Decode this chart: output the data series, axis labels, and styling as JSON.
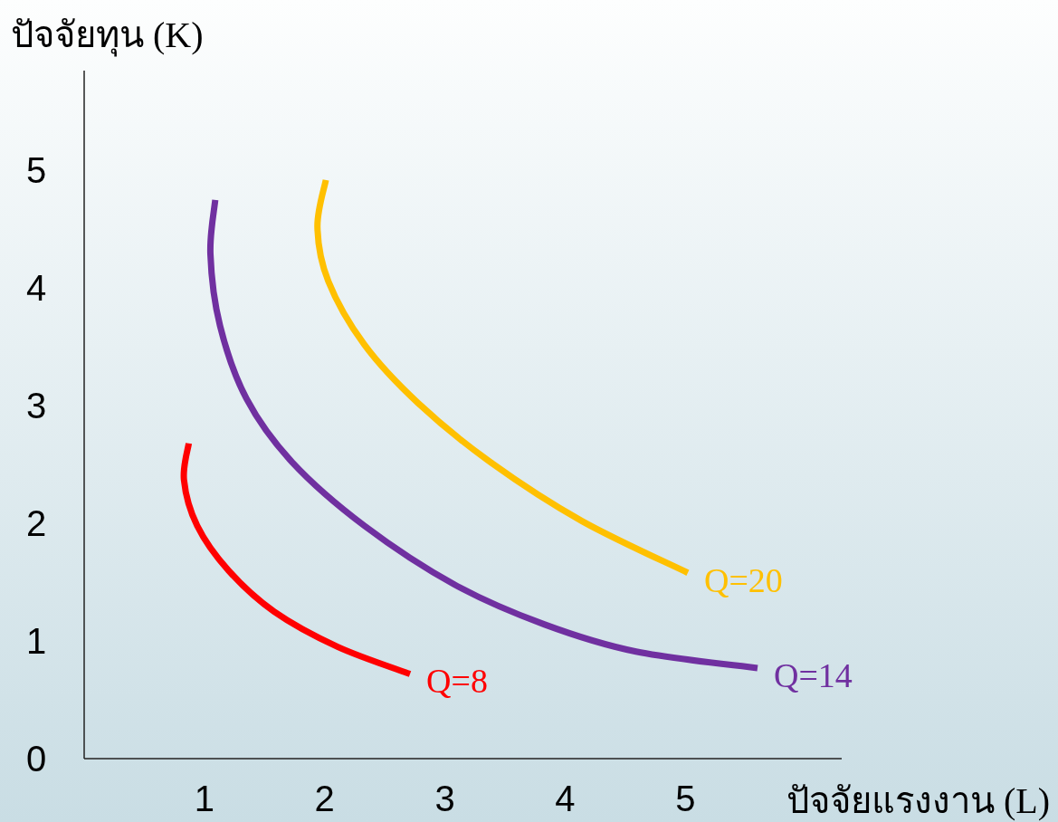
{
  "chart_data": {
    "type": "line",
    "xlabel": "ปัจจัยแรงงาน (L)",
    "ylabel": "ปัจจัยทุน (K)",
    "xlim": [
      0,
      6.3
    ],
    "ylim": [
      0,
      5.85
    ],
    "xticks": [
      1,
      2,
      3,
      4,
      5
    ],
    "yticks": [
      0,
      1,
      2,
      3,
      4,
      5
    ],
    "grid": false,
    "legend": false,
    "marker": "none",
    "line_style": "solid",
    "series": [
      {
        "name": "Q=8",
        "color": "#ff0000",
        "x": [
          0.87,
          0.83,
          0.94,
          1.2,
          1.58,
          2.11,
          2.71
        ],
        "values": [
          2.68,
          2.37,
          1.98,
          1.6,
          1.25,
          0.95,
          0.72
        ]
      },
      {
        "name": "Q=14",
        "color": "#7030a0",
        "x": [
          1.09,
          1.05,
          1.13,
          1.35,
          1.73,
          2.33,
          3.08,
          3.83,
          4.59,
          5.6
        ],
        "values": [
          4.75,
          4.29,
          3.68,
          3.06,
          2.52,
          1.98,
          1.48,
          1.14,
          0.91,
          0.77
        ]
      },
      {
        "name": "Q=20",
        "color": "#ffc000",
        "x": [
          2.01,
          1.94,
          2.03,
          2.33,
          2.78,
          3.38,
          4.14,
          5.02
        ],
        "values": [
          4.92,
          4.52,
          4.06,
          3.52,
          3.02,
          2.52,
          2.02,
          1.58
        ]
      }
    ]
  }
}
